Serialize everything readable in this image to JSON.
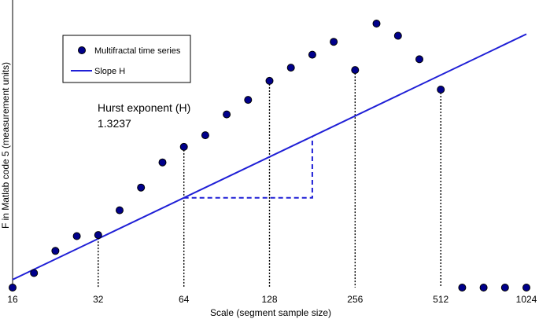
{
  "chart_data": {
    "type": "scatter",
    "xlabel": "Scale (segment sample size)",
    "ylabel": "F in Matlab code 5 (measurement units)",
    "x_scale": "log2",
    "xlim": [
      16,
      1024
    ],
    "ylim": [
      0,
      1
    ],
    "x_ticks": [
      "16",
      "32",
      "64",
      "128",
      "256",
      "512",
      "1024"
    ],
    "legend": {
      "position": "top-left",
      "entries": [
        "Multifractal time series",
        "Slope H"
      ]
    },
    "annotation": {
      "title": "Hurst exponent (H)",
      "value": "1.3237"
    },
    "colors": {
      "marker_fill": "#00008b",
      "marker_edge": "#000000",
      "slope_line": "#1f1fd6",
      "slope_triangle": "#1f1fd6",
      "dotted_lines": "#000000"
    },
    "series": [
      {
        "name": "Multifractal time series",
        "type": "scatter",
        "x": [
          16,
          19.03,
          22.63,
          26.91,
          32,
          38.05,
          45.25,
          53.82,
          64,
          76.11,
          90.51,
          107.63,
          128,
          152.22,
          181.02,
          215.27,
          256,
          304.44,
          362.04,
          430.54,
          512,
          608.87,
          724.08,
          861.08,
          1024
        ],
        "y": [
          0.0,
          0.055,
          0.139,
          0.195,
          0.199,
          0.293,
          0.379,
          0.474,
          0.533,
          0.577,
          0.656,
          0.711,
          0.783,
          0.833,
          0.882,
          0.931,
          0.824,
          1.0,
          0.954,
          0.865,
          0.75,
          0.0,
          0.0,
          0.0,
          0.0
        ]
      },
      {
        "name": "Slope H",
        "type": "line",
        "x": [
          16,
          1024
        ],
        "y": [
          0.03,
          0.96
        ]
      }
    ]
  }
}
